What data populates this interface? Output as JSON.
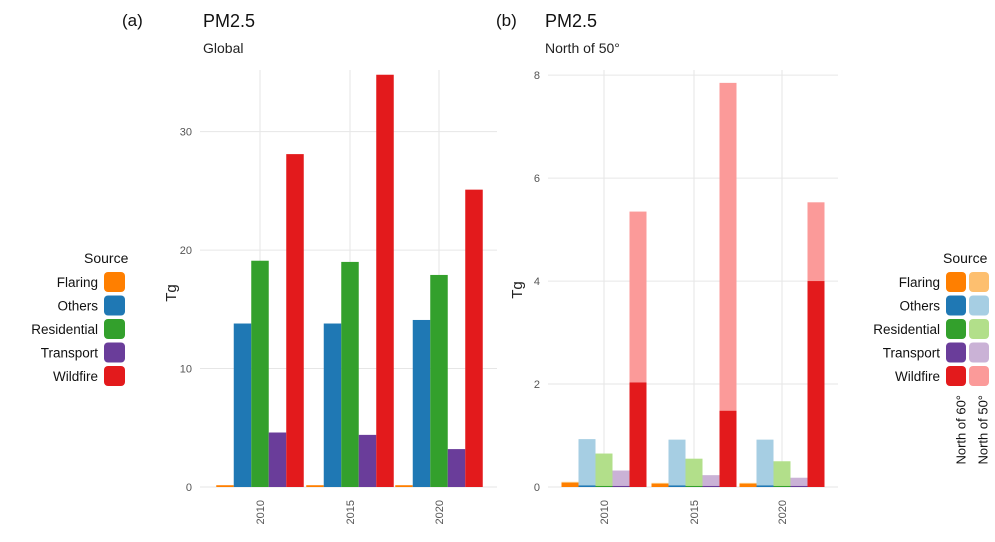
{
  "chart_data": [
    {
      "panel": "(a)",
      "type": "bar",
      "title": "PM2.5",
      "subtitle": "Global",
      "ylabel": "Tg",
      "xlabel": "",
      "ylim": [
        0,
        35.2
      ],
      "yticks": [
        0,
        10,
        20,
        30
      ],
      "categories": [
        "2010",
        "2015",
        "2020"
      ],
      "grid": true,
      "series": [
        {
          "name": "Flaring",
          "color": "#FF7F00",
          "values": [
            0.15,
            0.15,
            0.15
          ]
        },
        {
          "name": "Others",
          "color": "#1F78B4",
          "values": [
            13.8,
            13.8,
            14.1
          ]
        },
        {
          "name": "Residential",
          "color": "#33A02C",
          "values": [
            19.1,
            19.0,
            17.9
          ]
        },
        {
          "name": "Transport",
          "color": "#6A3D9A",
          "values": [
            4.6,
            4.4,
            3.2
          ]
        },
        {
          "name": "Wildfire",
          "color": "#E31A1C",
          "values": [
            28.1,
            34.8,
            25.1
          ]
        }
      ],
      "legend": {
        "title": "Source",
        "position": "left"
      }
    },
    {
      "panel": "(b)",
      "type": "bar",
      "title": "PM2.5",
      "subtitle": "North of 50°",
      "ylabel": "Tg",
      "xlabel": "",
      "ylim": [
        0,
        8.1
      ],
      "yticks": [
        0,
        2,
        4,
        6,
        8
      ],
      "categories": [
        "2010",
        "2015",
        "2020"
      ],
      "grid": true,
      "stacked_regions": [
        "North of 60°",
        "North of 50°"
      ],
      "series": [
        {
          "name": "Flaring",
          "colors": [
            "#FF7F00",
            "#FDBF6F"
          ],
          "north_of_60": [
            0.08,
            0.06,
            0.06
          ],
          "north_of_50": [
            0.1,
            0.08,
            0.08
          ]
        },
        {
          "name": "Others",
          "colors": [
            "#1F78B4",
            "#A6CEE3"
          ],
          "north_of_60": [
            0.03,
            0.03,
            0.03
          ],
          "north_of_50": [
            0.93,
            0.92,
            0.92
          ]
        },
        {
          "name": "Residential",
          "colors": [
            "#33A02C",
            "#B2DF8A"
          ],
          "north_of_60": [
            0.02,
            0.02,
            0.02
          ],
          "north_of_50": [
            0.65,
            0.55,
            0.5
          ]
        },
        {
          "name": "Transport",
          "colors": [
            "#6A3D9A",
            "#CAB2D6"
          ],
          "north_of_60": [
            0.02,
            0.02,
            0.02
          ],
          "north_of_50": [
            0.32,
            0.23,
            0.18
          ]
        },
        {
          "name": "Wildfire",
          "colors": [
            "#E31A1C",
            "#FB9A99"
          ],
          "north_of_60": [
            2.03,
            1.48,
            4.0
          ],
          "north_of_50": [
            5.35,
            7.85,
            5.53
          ]
        }
      ],
      "legend": {
        "title": "Source",
        "position": "right",
        "column_labels": [
          "North of 60°",
          "North of 50°"
        ]
      }
    }
  ]
}
